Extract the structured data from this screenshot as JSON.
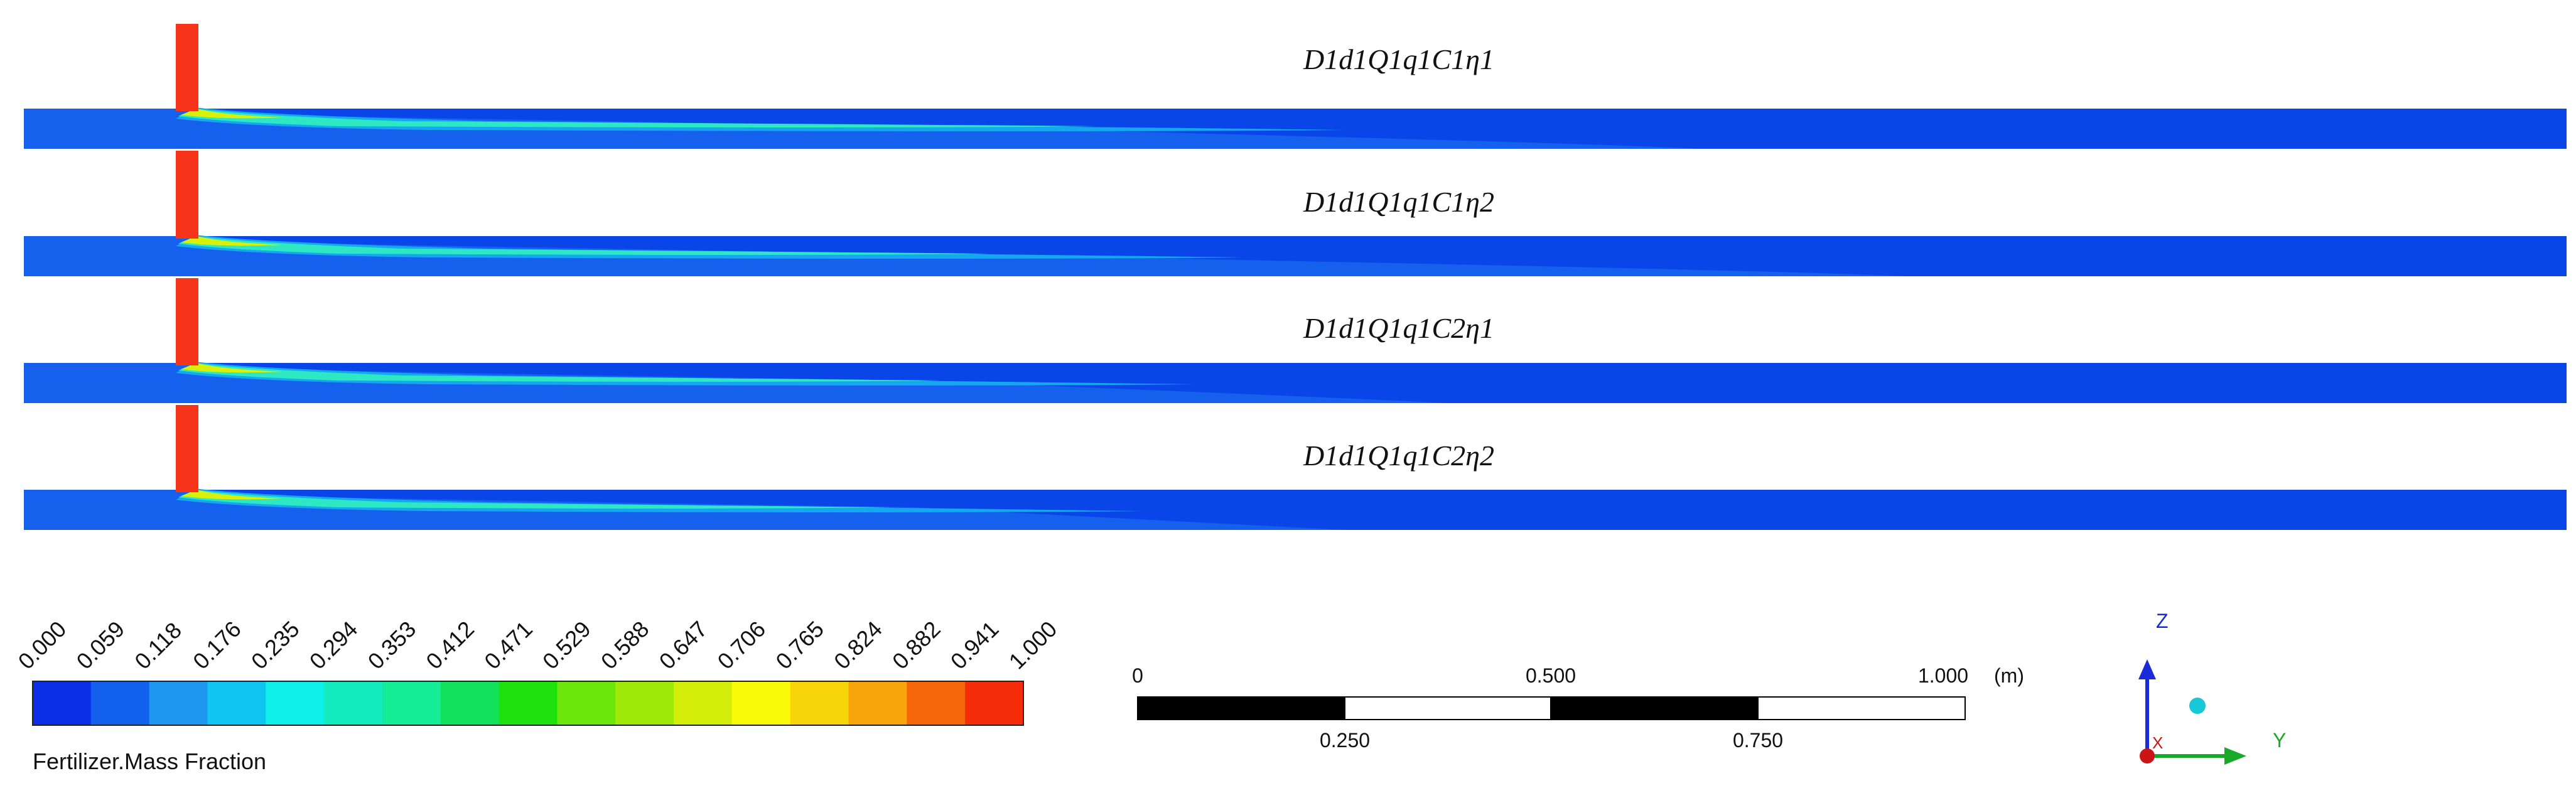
{
  "cases": [
    {
      "label": "D1d1Q1q1C1η1",
      "plume_reach": 0.52,
      "layer_reach": 0.66
    },
    {
      "label": "D1d1Q1q1C1η2",
      "plume_reach": 0.48,
      "layer_reach": 0.74
    },
    {
      "label": "D1d1Q1q1C2η1",
      "plume_reach": 0.46,
      "layer_reach": 0.56
    },
    {
      "label": "D1d1Q1q1C2η2",
      "plume_reach": 0.44,
      "layer_reach": 0.52
    }
  ],
  "colorbar": {
    "title": "Fertilizer.Mass Fraction",
    "ticks": [
      "0.000",
      "0.059",
      "0.118",
      "0.176",
      "0.235",
      "0.294",
      "0.353",
      "0.412",
      "0.471",
      "0.529",
      "0.588",
      "0.647",
      "0.706",
      "0.765",
      "0.824",
      "0.882",
      "0.941",
      "1.000"
    ],
    "colors": [
      "#0a2fe6",
      "#1460ee",
      "#1e98ee",
      "#0ec6f0",
      "#0ff0ea",
      "#14ecc0",
      "#14ec96",
      "#10e05a",
      "#1ee00a",
      "#6ae60a",
      "#9ee80a",
      "#d4ee0a",
      "#fafa0a",
      "#f8d50a",
      "#f8a40a",
      "#f5660a",
      "#f52d0a"
    ]
  },
  "scale": {
    "labels_top": [
      "0",
      "0.500",
      "1.000"
    ],
    "unit": "(m)",
    "labels_bottom": [
      "0.250",
      "0.750"
    ]
  },
  "axes": {
    "z": "Z",
    "y": "Y",
    "x": "X"
  },
  "colors": {
    "background": "#0a45e8",
    "pipe": "#f5341a",
    "layer": "#1560ec",
    "plume_hi": "#2ee8c4",
    "plume_lo": "#14a8ee"
  }
}
